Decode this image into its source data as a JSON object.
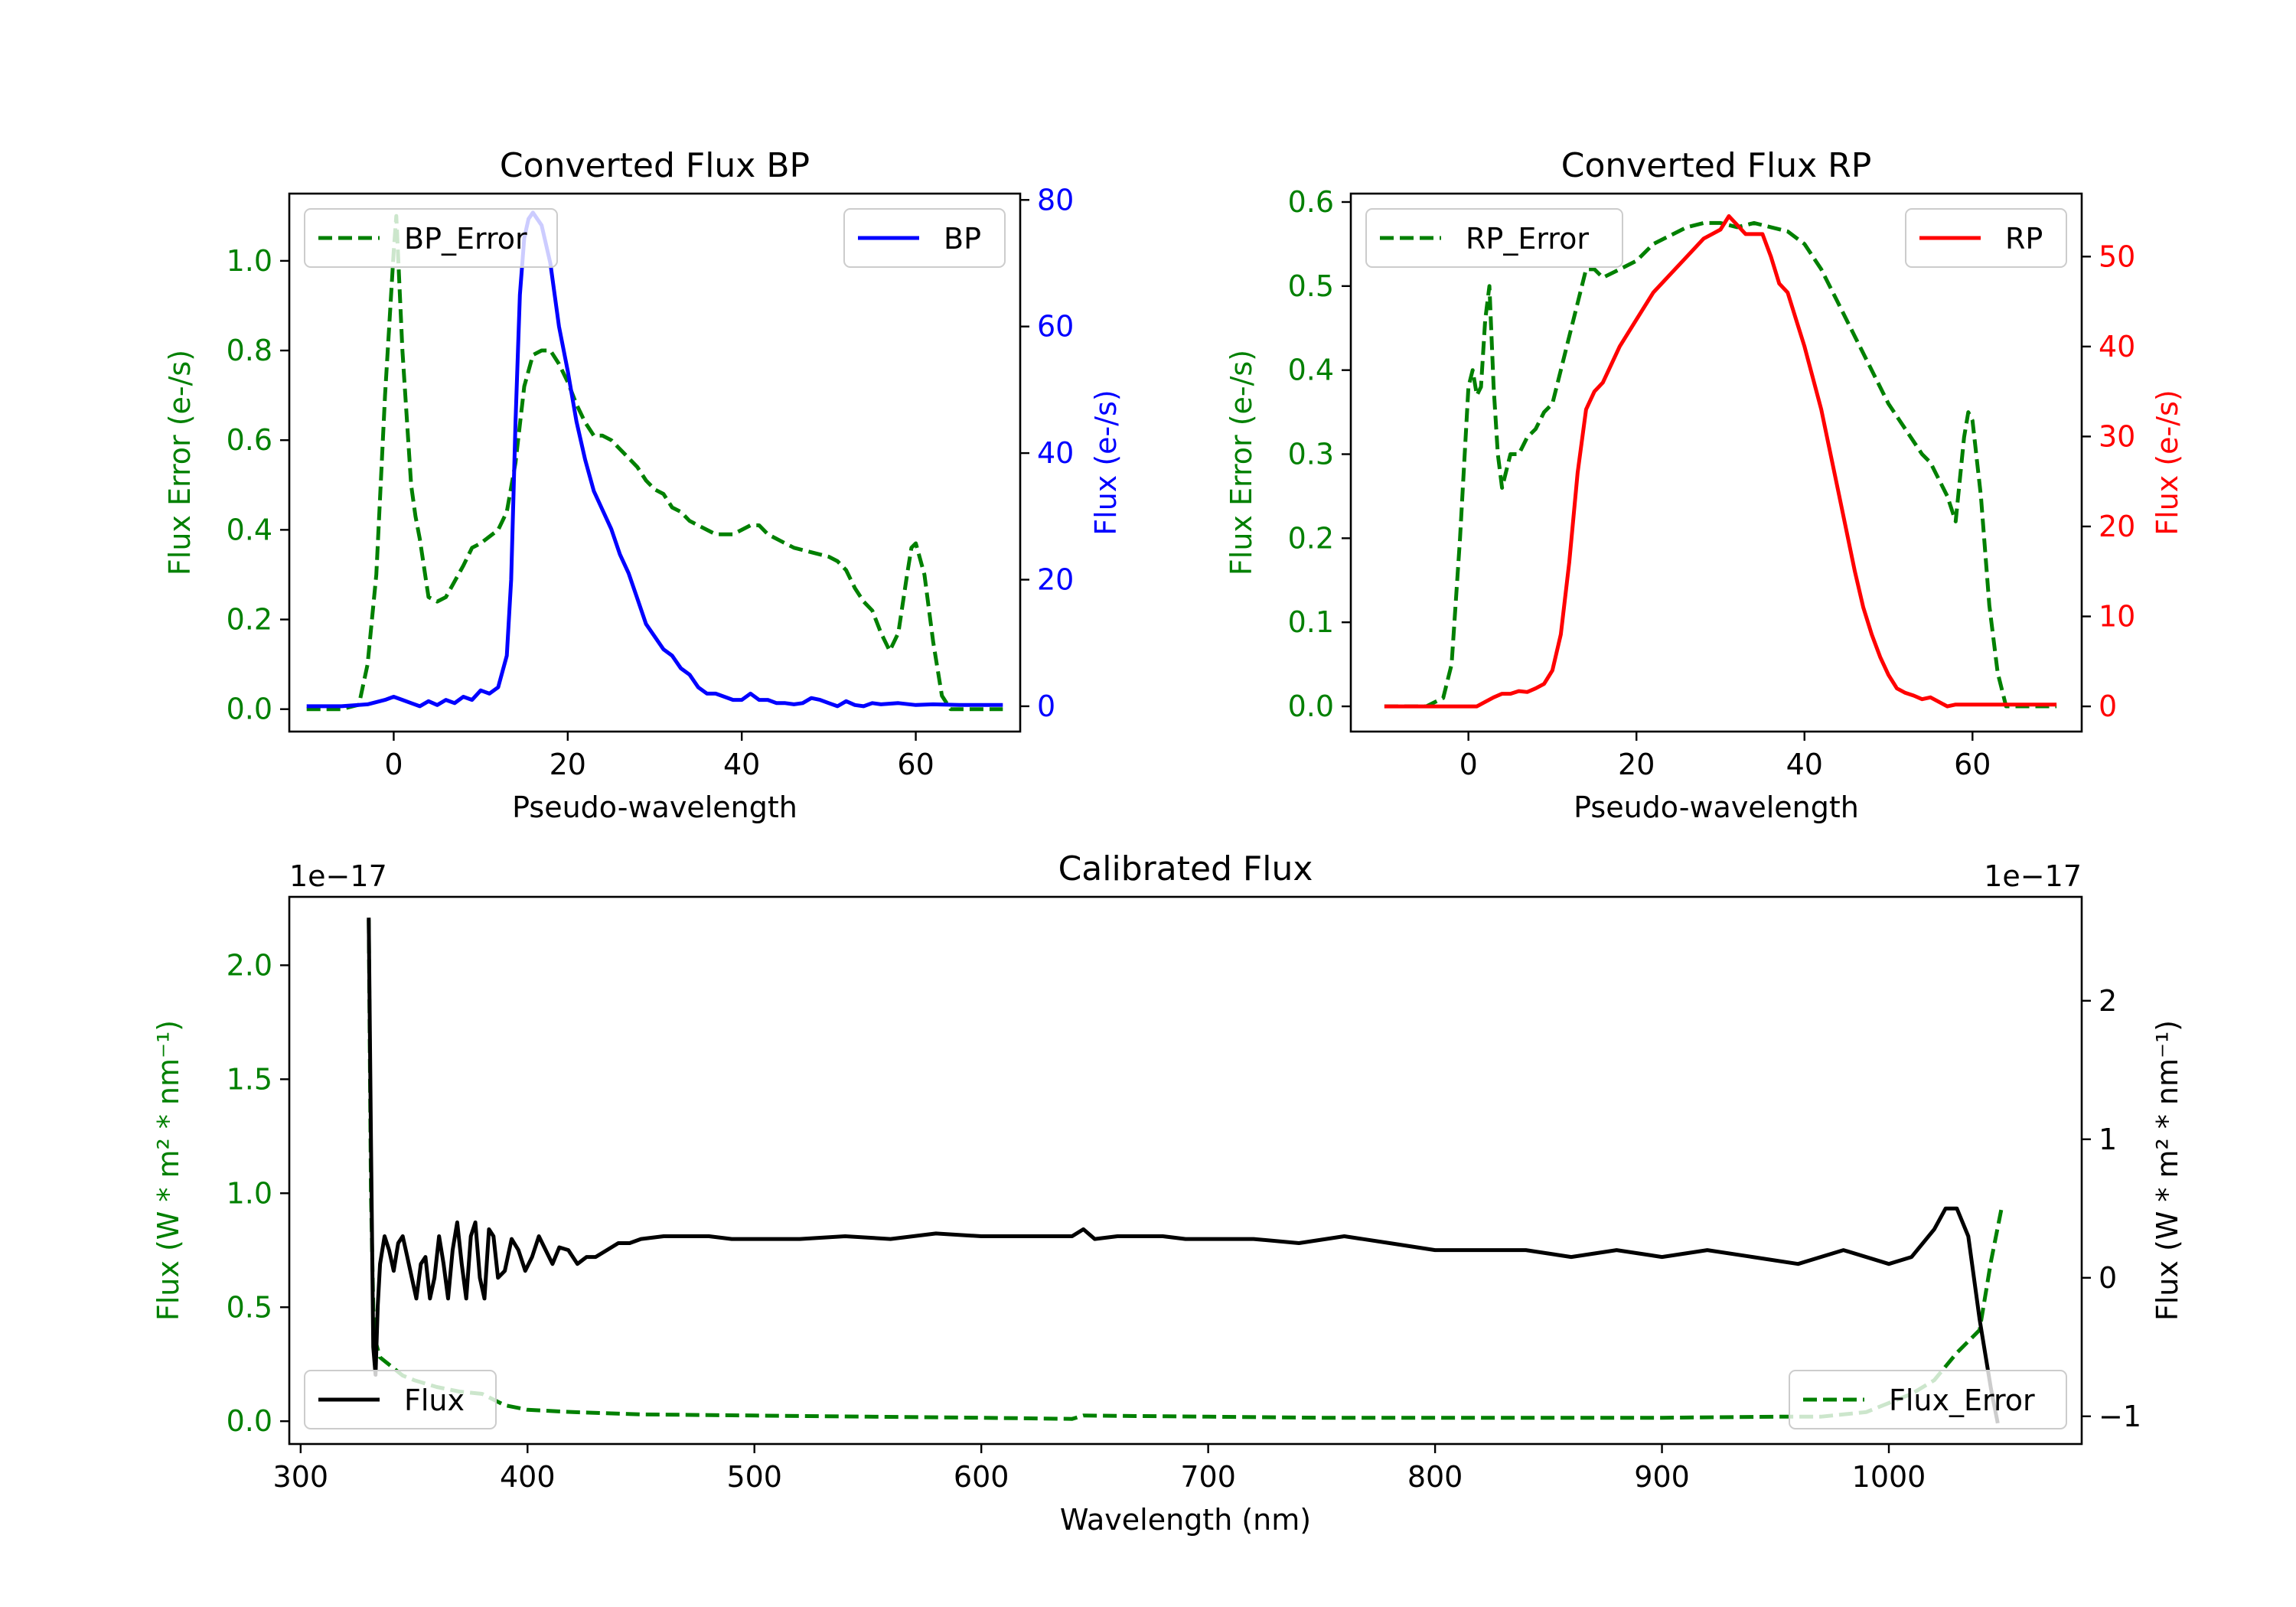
{
  "colors": {
    "bp": "#0000ff",
    "rp": "#ff0000",
    "error": "#008000",
    "flux": "#000000"
  },
  "chart_data": [
    {
      "id": "bp",
      "type": "line",
      "title": "Converted Flux BP",
      "xlabel": "Pseudo-wavelength",
      "ylabel_left": "Flux Error (e-/s)",
      "ylabel_right": "Flux (e-/s)",
      "xlim": [
        -12,
        72
      ],
      "ylim_left": [
        -0.05,
        1.15
      ],
      "ylim_right": [
        -4,
        81
      ],
      "xticks": [
        0,
        20,
        40,
        60
      ],
      "yticks_left": [
        "0.0",
        "0.2",
        "0.4",
        "0.6",
        "0.8",
        "1.0"
      ],
      "yticks_right": [
        "0",
        "20",
        "40",
        "60",
        "80"
      ],
      "legend_left": "BP_Error",
      "legend_right": "BP",
      "series": [
        {
          "name": "BP_Error",
          "axis": "left",
          "style": "dashed",
          "color_key": "error",
          "x": [
            -10,
            -6,
            -4,
            -3,
            -2,
            -1,
            0,
            0.3,
            1,
            2,
            2.5,
            3,
            4,
            5,
            6,
            8,
            9,
            10,
            12,
            13,
            14,
            15,
            16,
            17,
            18,
            19,
            20,
            21,
            22,
            23,
            24,
            25,
            26,
            27,
            28,
            29,
            30,
            31,
            32,
            33,
            34,
            35,
            36,
            37,
            38,
            39,
            40,
            41,
            42,
            43,
            44,
            45,
            46,
            48,
            50,
            51,
            52,
            53,
            54,
            55,
            56,
            57,
            58,
            59,
            59.5,
            60,
            61,
            62,
            63,
            64,
            66,
            70
          ],
          "y": [
            0.0,
            0.0,
            0.01,
            0.1,
            0.3,
            0.7,
            1.02,
            1.1,
            0.8,
            0.5,
            0.43,
            0.38,
            0.25,
            0.24,
            0.25,
            0.32,
            0.36,
            0.37,
            0.4,
            0.44,
            0.55,
            0.72,
            0.79,
            0.8,
            0.8,
            0.77,
            0.73,
            0.68,
            0.64,
            0.61,
            0.61,
            0.6,
            0.58,
            0.56,
            0.54,
            0.51,
            0.49,
            0.48,
            0.45,
            0.44,
            0.42,
            0.41,
            0.4,
            0.39,
            0.39,
            0.39,
            0.4,
            0.41,
            0.41,
            0.39,
            0.38,
            0.37,
            0.36,
            0.35,
            0.34,
            0.33,
            0.31,
            0.27,
            0.24,
            0.22,
            0.17,
            0.13,
            0.17,
            0.3,
            0.36,
            0.37,
            0.3,
            0.15,
            0.03,
            0.0,
            0.0,
            0.0
          ]
        },
        {
          "name": "BP",
          "axis": "right",
          "style": "solid",
          "color_key": "bp",
          "x": [
            -10,
            -6,
            -3,
            -1,
            0,
            1,
            2,
            3,
            4,
            5,
            6,
            7,
            8,
            9,
            10,
            11,
            12,
            13,
            13.5,
            14,
            14.5,
            15,
            15.5,
            16,
            17,
            18,
            19,
            20,
            21,
            22,
            23,
            24,
            25,
            26,
            27,
            28,
            29,
            30,
            31,
            32,
            33,
            34,
            35,
            36,
            37,
            38,
            39,
            40,
            41,
            42,
            43,
            44,
            45,
            46,
            47,
            48,
            49,
            50,
            51,
            52,
            53,
            54,
            55,
            56,
            58,
            60,
            62,
            65,
            70
          ],
          "y": [
            0,
            0,
            0.3,
            1,
            1.5,
            1,
            0.5,
            0,
            0.8,
            0.2,
            1,
            0.5,
            1.5,
            1,
            2.5,
            2,
            3,
            8,
            20,
            45,
            65,
            74,
            77,
            78,
            76,
            70,
            60,
            53,
            45,
            39,
            34,
            31,
            28,
            24,
            21,
            17,
            13,
            11,
            9,
            8,
            6,
            5,
            3,
            2,
            2,
            1.5,
            1,
            1,
            2,
            1,
            1,
            0.5,
            0.5,
            0.3,
            0.5,
            1.3,
            1,
            0.5,
            0,
            0.8,
            0.2,
            0,
            0.5,
            0.3,
            0.5,
            0.2,
            0.3,
            0.2,
            0.2
          ]
        }
      ]
    },
    {
      "id": "rp",
      "type": "line",
      "title": "Converted Flux RP",
      "xlabel": "Pseudo-wavelength",
      "ylabel_left": "Flux Error (e-/s)",
      "ylabel_right": "Flux (e-/s)",
      "xlim": [
        -14,
        73
      ],
      "ylim_left": [
        -0.03,
        0.61
      ],
      "ylim_right": [
        -2.8,
        57
      ],
      "xticks": [
        0,
        20,
        40,
        60
      ],
      "yticks_left": [
        "0.0",
        "0.1",
        "0.2",
        "0.3",
        "0.4",
        "0.5",
        "0.6"
      ],
      "yticks_right": [
        "0",
        "10",
        "20",
        "30",
        "40",
        "50"
      ],
      "legend_left": "RP_Error",
      "legend_right": "RP",
      "series": [
        {
          "name": "RP_Error",
          "axis": "left",
          "style": "dashed",
          "color_key": "error",
          "x": [
            -10,
            -5,
            -3,
            -2,
            -1,
            0,
            0.5,
            1,
            1.5,
            2,
            2.5,
            3,
            3.5,
            4,
            5,
            6,
            7,
            8,
            9,
            10,
            11,
            12,
            13,
            14,
            15,
            16,
            18,
            20,
            22,
            24,
            26,
            28,
            30,
            32,
            34,
            36,
            38,
            40,
            42,
            44,
            46,
            48,
            50,
            52,
            54,
            55,
            56,
            57,
            58,
            59,
            59.5,
            60,
            61,
            62,
            63,
            64,
            66,
            70
          ],
          "y": [
            0.0,
            0.0,
            0.01,
            0.05,
            0.2,
            0.38,
            0.4,
            0.37,
            0.38,
            0.46,
            0.5,
            0.38,
            0.3,
            0.26,
            0.3,
            0.3,
            0.32,
            0.33,
            0.35,
            0.36,
            0.4,
            0.44,
            0.48,
            0.52,
            0.52,
            0.51,
            0.52,
            0.53,
            0.55,
            0.56,
            0.57,
            0.575,
            0.575,
            0.57,
            0.575,
            0.57,
            0.565,
            0.55,
            0.52,
            0.48,
            0.44,
            0.4,
            0.36,
            0.33,
            0.3,
            0.29,
            0.27,
            0.25,
            0.22,
            0.32,
            0.35,
            0.34,
            0.25,
            0.12,
            0.04,
            0.0,
            0.0,
            0.0
          ]
        },
        {
          "name": "RP",
          "axis": "right",
          "style": "solid",
          "color_key": "rp",
          "x": [
            -10,
            -6,
            -3,
            -1,
            0,
            1,
            2,
            3,
            4,
            5,
            6,
            7,
            8,
            9,
            10,
            11,
            12,
            13,
            14,
            15,
            16,
            18,
            20,
            22,
            24,
            26,
            28,
            29,
            30,
            31,
            32,
            33,
            34,
            35,
            36,
            37,
            38,
            39,
            40,
            42,
            44,
            46,
            47,
            48,
            49,
            50,
            51,
            52,
            53,
            54,
            55,
            56,
            57,
            58,
            60,
            62,
            66,
            70
          ],
          "y": [
            0,
            0,
            0,
            0,
            0,
            0,
            0.5,
            1,
            1.4,
            1.4,
            1.7,
            1.6,
            2,
            2.5,
            4,
            8,
            16,
            26,
            33,
            35,
            36,
            40,
            43,
            46,
            48,
            50,
            52,
            52.5,
            53,
            54.5,
            53.5,
            52.5,
            52.5,
            52.5,
            50,
            47,
            46,
            43,
            40,
            33,
            24,
            15,
            11,
            8,
            5.5,
            3.5,
            2,
            1.5,
            1.2,
            0.8,
            1.0,
            0.5,
            0,
            0.2,
            0.2,
            0.2,
            0.2,
            0.2
          ]
        }
      ]
    },
    {
      "id": "calibrated",
      "type": "line",
      "title": "Calibrated Flux",
      "xlabel": "Wavelength (nm)",
      "ylabel_left": "Flux (W * m² * nm⁻¹)",
      "ylabel_right": "Flux (W * m² * nm⁻¹)",
      "offset_left": "1e−17",
      "offset_right": "1e−17",
      "xlim": [
        295,
        1085
      ],
      "ylim_left": [
        -0.1,
        2.3
      ],
      "ylim_right": [
        -1.2,
        2.75
      ],
      "xticks": [
        300,
        400,
        500,
        600,
        700,
        800,
        900,
        1000
      ],
      "yticks_left": [
        "0.0",
        "0.5",
        "1.0",
        "1.5",
        "2.0"
      ],
      "yticks_right": [
        "−1",
        "0",
        "1",
        "2"
      ],
      "legend_left": "Flux",
      "legend_right": "Flux_Error",
      "series": [
        {
          "name": "Flux_Error",
          "axis": "left",
          "style": "dashed",
          "color_key": "error",
          "x": [
            330,
            331,
            332,
            333,
            335,
            340,
            345,
            350,
            360,
            370,
            380,
            390,
            400,
            420,
            450,
            500,
            550,
            600,
            640,
            645,
            700,
            750,
            800,
            900,
            950,
            970,
            990,
            1000,
            1010,
            1020,
            1030,
            1040,
            1045,
            1050
          ],
          "y": [
            2.2,
            1.0,
            0.5,
            0.35,
            0.28,
            0.24,
            0.2,
            0.18,
            0.15,
            0.13,
            0.12,
            0.07,
            0.05,
            0.04,
            0.03,
            0.025,
            0.02,
            0.015,
            0.01,
            0.025,
            0.02,
            0.015,
            0.015,
            0.015,
            0.02,
            0.02,
            0.04,
            0.08,
            0.12,
            0.18,
            0.3,
            0.4,
            0.7,
            0.95
          ]
        },
        {
          "name": "Flux",
          "axis": "right",
          "style": "solid",
          "color_key": "flux",
          "x": [
            330,
            331,
            332,
            333,
            334,
            335,
            337,
            339,
            341,
            343,
            345,
            347,
            349,
            351,
            353,
            355,
            357,
            359,
            361,
            363,
            365,
            367,
            369,
            371,
            373,
            375,
            377,
            379,
            381,
            383,
            385,
            387,
            390,
            393,
            396,
            399,
            402,
            405,
            408,
            411,
            414,
            418,
            422,
            426,
            430,
            435,
            440,
            445,
            450,
            460,
            470,
            480,
            490,
            500,
            520,
            540,
            560,
            580,
            600,
            620,
            640,
            645,
            650,
            660,
            670,
            680,
            690,
            700,
            720,
            740,
            760,
            780,
            800,
            820,
            840,
            860,
            880,
            900,
            920,
            940,
            960,
            980,
            1000,
            1010,
            1020,
            1025,
            1030,
            1035,
            1040,
            1045,
            1048
          ],
          "y": [
            2.6,
            1.0,
            -0.5,
            -0.7,
            -0.2,
            0.1,
            0.3,
            0.2,
            0.05,
            0.25,
            0.3,
            0.15,
            0.0,
            -0.15,
            0.1,
            0.15,
            -0.15,
            0.0,
            0.3,
            0.1,
            -0.15,
            0.2,
            0.4,
            0.1,
            -0.15,
            0.3,
            0.4,
            0.0,
            -0.15,
            0.35,
            0.3,
            0.0,
            0.05,
            0.28,
            0.2,
            0.05,
            0.15,
            0.3,
            0.2,
            0.1,
            0.22,
            0.2,
            0.1,
            0.15,
            0.15,
            0.2,
            0.25,
            0.25,
            0.28,
            0.3,
            0.3,
            0.3,
            0.28,
            0.28,
            0.28,
            0.3,
            0.28,
            0.32,
            0.3,
            0.3,
            0.3,
            0.35,
            0.28,
            0.3,
            0.3,
            0.3,
            0.28,
            0.28,
            0.28,
            0.25,
            0.3,
            0.25,
            0.2,
            0.2,
            0.2,
            0.15,
            0.2,
            0.15,
            0.2,
            0.15,
            0.1,
            0.2,
            0.1,
            0.15,
            0.35,
            0.5,
            0.5,
            0.3,
            -0.3,
            -0.8,
            -1.05
          ]
        }
      ]
    }
  ]
}
